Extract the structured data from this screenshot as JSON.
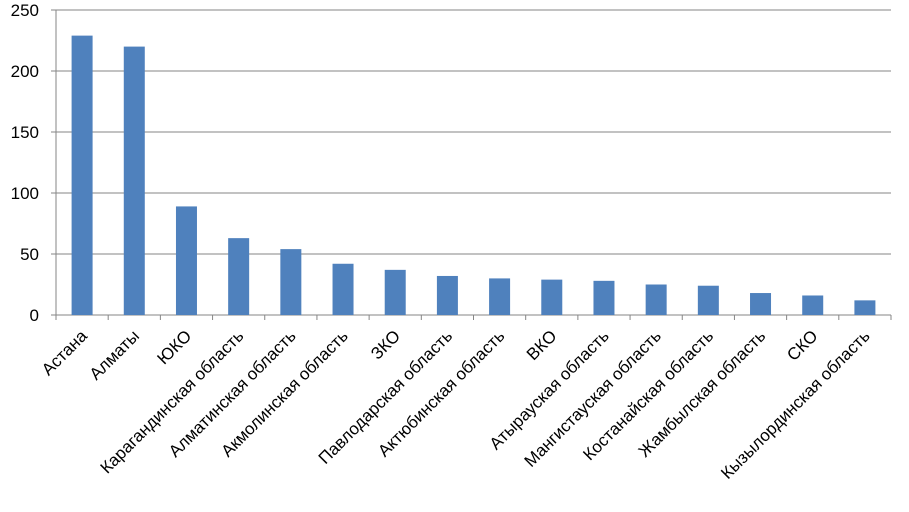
{
  "chart_data": {
    "type": "bar",
    "title": "",
    "xlabel": "",
    "ylabel": "",
    "ylim": [
      0,
      250
    ],
    "yticks": [
      0,
      50,
      100,
      150,
      200,
      250
    ],
    "grid": true,
    "legend": "none",
    "bar_color": "#4F81BD",
    "grid_color": "#868686",
    "categories": [
      "Астана",
      "Алматы",
      "ЮКО",
      "Карагандинская область",
      "Алматинская область",
      "Акмолинская область",
      "ЗКО",
      "Павлодарская область",
      "Актюбинская область",
      "ВКО",
      "Атырауская область",
      "Мангистауская область",
      "Костанайская область",
      "Жамбылская область",
      "СКО",
      "Кызылординская область"
    ],
    "values": [
      229,
      220,
      89,
      63,
      54,
      42,
      37,
      32,
      30,
      29,
      28,
      25,
      24,
      18,
      16,
      12
    ]
  }
}
